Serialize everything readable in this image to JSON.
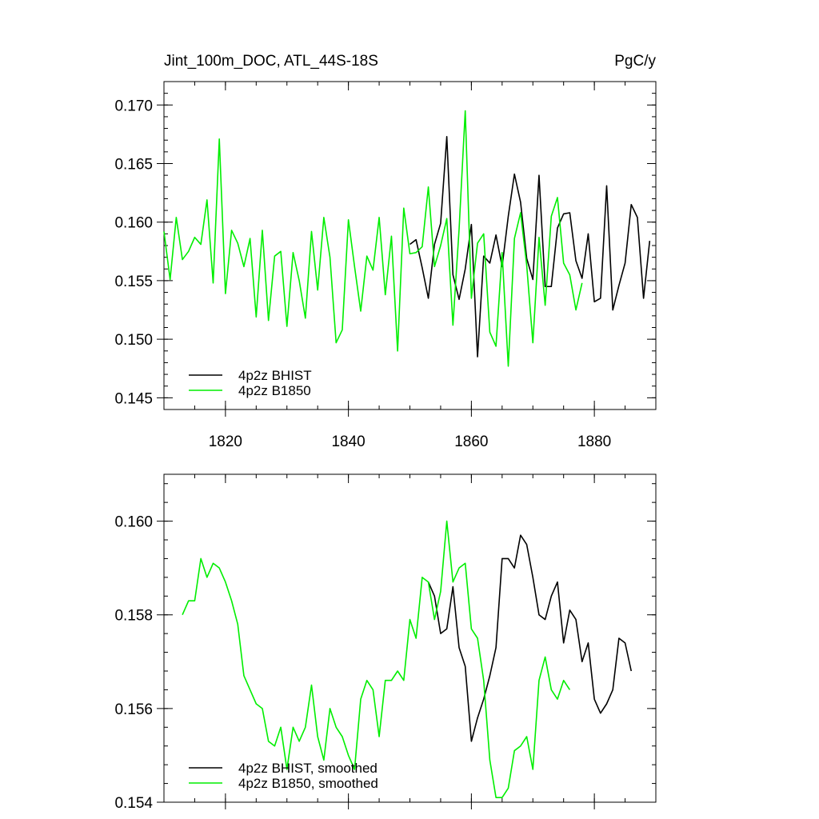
{
  "chart_data": [
    {
      "type": "line",
      "title": "Jint_100m_DOC, ATL_44S-18S",
      "units": "PgC/y",
      "xlim": [
        1810,
        1890
      ],
      "ylim": [
        0.144,
        0.172
      ],
      "x_ticks": [
        1820,
        1840,
        1860,
        1880
      ],
      "y_ticks": [
        0.145,
        0.15,
        0.155,
        0.16,
        0.165,
        0.17
      ],
      "y_tick_labels": [
        "0.145",
        "0.150",
        "0.155",
        "0.160",
        "0.165",
        "0.170"
      ],
      "legend_position": "bottom-left",
      "series": [
        {
          "name": "4p2z BHIST",
          "color": "#000000",
          "x_start": 1850,
          "values": [
            0.1581,
            0.1585,
            0.1561,
            0.1535,
            0.1581,
            0.1599,
            0.1673,
            0.1555,
            0.1534,
            0.156,
            0.1598,
            0.1485,
            0.1571,
            0.1565,
            0.1589,
            0.1562,
            0.1605,
            0.1641,
            0.1617,
            0.1569,
            0.1551,
            0.164,
            0.1545,
            0.1545,
            0.1595,
            0.1607,
            0.1608,
            0.1567,
            0.1552,
            0.159,
            0.1532,
            0.1535,
            0.1631,
            0.1525,
            0.1546,
            0.1565,
            0.1615,
            0.1604,
            0.1535,
            0.1584
          ]
        },
        {
          "name": "4p2z B1850",
          "color": "#00ee00",
          "x_start": 1810,
          "values": [
            0.1592,
            0.1551,
            0.1604,
            0.1568,
            0.1575,
            0.1587,
            0.1581,
            0.1619,
            0.1548,
            0.1671,
            0.1539,
            0.1593,
            0.1582,
            0.1562,
            0.1586,
            0.1519,
            0.1593,
            0.1516,
            0.1571,
            0.1575,
            0.1511,
            0.1574,
            0.155,
            0.1518,
            0.1592,
            0.1542,
            0.1604,
            0.157,
            0.1497,
            0.1508,
            0.1602,
            0.1562,
            0.1524,
            0.1571,
            0.1559,
            0.1604,
            0.1538,
            0.1588,
            0.149,
            0.1612,
            0.1573,
            0.1574,
            0.1579,
            0.163,
            0.1562,
            0.158,
            0.1603,
            0.1512,
            0.1594,
            0.1695,
            0.1535,
            0.1582,
            0.159,
            0.1506,
            0.1494,
            0.1574,
            0.1477,
            0.1586,
            0.1608,
            0.1563,
            0.1497,
            0.1587,
            0.1529,
            0.1605,
            0.1621,
            0.1565,
            0.1555,
            0.1525,
            0.1548
          ]
        }
      ]
    },
    {
      "type": "line",
      "title": "",
      "xlim": [
        1810,
        1890
      ],
      "ylim": [
        0.154,
        0.161
      ],
      "x_ticks": [
        1820,
        1840,
        1860,
        1880
      ],
      "y_ticks": [
        0.154,
        0.156,
        0.158,
        0.16
      ],
      "y_tick_labels": [
        "0.154",
        "0.156",
        "0.158",
        "0.160"
      ],
      "legend_position": "bottom-left",
      "series": [
        {
          "name": "4p2z BHIST, smoothed",
          "color": "#000000",
          "x_start": 1853,
          "values": [
            0.1587,
            0.1584,
            0.1576,
            0.1577,
            0.1586,
            0.1573,
            0.1569,
            0.1553,
            0.1558,
            0.1562,
            0.1567,
            0.1573,
            0.1592,
            0.1592,
            0.159,
            0.1597,
            0.1595,
            0.1588,
            0.158,
            0.1579,
            0.1584,
            0.1587,
            0.1574,
            0.1581,
            0.1579,
            0.157,
            0.1574,
            0.1562,
            0.1559,
            0.1561,
            0.1564,
            0.1575,
            0.1574,
            0.1568
          ]
        },
        {
          "name": "4p2z B1850, smoothed",
          "color": "#00ee00",
          "x_start": 1813,
          "values": [
            0.158,
            0.1583,
            0.1583,
            0.1592,
            0.1588,
            0.1591,
            0.159,
            0.1587,
            0.1583,
            0.1578,
            0.1567,
            0.1564,
            0.1561,
            0.156,
            0.1553,
            0.1552,
            0.1556,
            0.1547,
            0.1556,
            0.1553,
            0.1556,
            0.1565,
            0.1554,
            0.1549,
            0.156,
            0.1556,
            0.1554,
            0.155,
            0.1547,
            0.1562,
            0.1566,
            0.1564,
            0.1554,
            0.1566,
            0.1566,
            0.1568,
            0.1566,
            0.1579,
            0.1575,
            0.1588,
            0.1587,
            0.1579,
            0.1585,
            0.16,
            0.1587,
            0.159,
            0.1591,
            0.1577,
            0.1575,
            0.1566,
            0.1549,
            0.1541,
            0.1541,
            0.1543,
            0.1551,
            0.1552,
            0.1554,
            0.1547,
            0.1566,
            0.1571,
            0.1564,
            0.1562,
            0.1566,
            0.1564
          ]
        }
      ]
    }
  ]
}
